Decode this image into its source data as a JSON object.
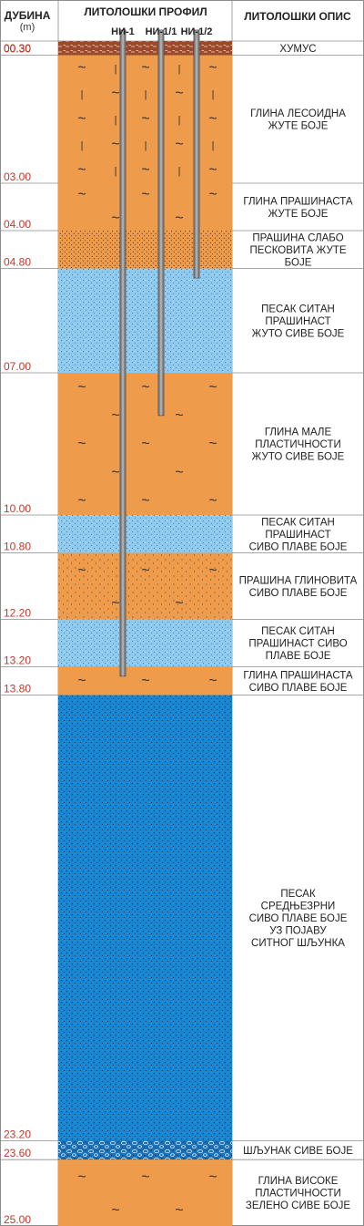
{
  "header": {
    "depth_title": "ДУБИНА",
    "depth_unit": "(m)",
    "profile_title": "ЛИТОЛОШКИ ПРОФИЛ",
    "description_title": "ЛИТОЛОШКИ ОПИС"
  },
  "wells": [
    {
      "name": "НИ-1",
      "bottom_depth": 13.4
    },
    {
      "name": "НИ-1/1",
      "bottom_depth": 7.9
    },
    {
      "name": "НИ-1/2",
      "bottom_depth": 5.0
    }
  ],
  "top_depth": "00.30",
  "layers": [
    {
      "bottom": "00.30",
      "description": [
        "ХУМУС"
      ],
      "pattern": "humus"
    },
    {
      "bottom": "03.00",
      "description": [
        "ГЛИНА ЛЕСОИДНА",
        "ЖУТЕ БОЈЕ"
      ],
      "pattern": "loess-clay"
    },
    {
      "bottom": "04.00",
      "description": [
        "ГЛИНА ПРАШИНАСТА",
        "ЖУТЕ БОЈЕ"
      ],
      "pattern": "clay"
    },
    {
      "bottom": "04.80",
      "description": [
        "ПРАШИНА СЛАБО",
        "ПЕСКОВИТА ЖУТЕ",
        "БОЈЕ"
      ],
      "pattern": "silt"
    },
    {
      "bottom": "07.00",
      "description": [
        "ПЕСАК СИТАН",
        "ПРАШИНАСТ",
        "ЖУТО СИВЕ БОЈЕ"
      ],
      "pattern": "fine-sand"
    },
    {
      "bottom": "10.00",
      "description": [
        "ГЛИНА МАЛЕ",
        "ПЛАСТИЧНОСТИ",
        "ЖУТО СИВЕ БОЈЕ"
      ],
      "pattern": "clay"
    },
    {
      "bottom": "10.80",
      "description": [
        "ПЕСАК СИТАН",
        "ПРАШИНАСТ",
        "СИВО ПЛАВЕ БОЈЕ"
      ],
      "pattern": "fine-sand"
    },
    {
      "bottom": "12.20",
      "description": [
        "ПРАШИНА ГЛИНОВИТА",
        "СИВО ПЛАВЕ БОЈЕ"
      ],
      "pattern": "clayey-silt"
    },
    {
      "bottom": "13.20",
      "description": [
        "ПЕСАК СИТАН",
        "ПРАШИНАСТ СИВО",
        "ПЛАВЕ БОЈЕ"
      ],
      "pattern": "fine-sand"
    },
    {
      "bottom": "13.80",
      "description": [
        "ГЛИНА ПРАШИНАСТА",
        "СИВО ПЛАВЕ БОЈЕ"
      ],
      "pattern": "clay"
    },
    {
      "bottom": "23.20",
      "description": [
        "ПЕСАК",
        "СРЕДЊЕЗРНИ",
        "СИВО ПЛАВЕ БОЈЕ",
        "УЗ ПОЈАВУ",
        "СИТНОГ ШЉУНКА"
      ],
      "pattern": "medium-sand"
    },
    {
      "bottom": "23.60",
      "description": [
        "ШЉУНАК СИВЕ БОЈЕ"
      ],
      "pattern": "gravel"
    },
    {
      "bottom": "25.00",
      "description": [
        "ГЛИНА ВИСОКЕ",
        "ПЛАСТИЧНОСТИ",
        "ЗЕЛЕНО СИВЕ БОЈЕ"
      ],
      "pattern": "clay"
    }
  ],
  "colors": {
    "humus": "#9c4a2c",
    "clay": "#ee9b4b",
    "fine_sand": "#8fcaee",
    "medium_sand": "#1787d4",
    "gravel": "#1a6fb5",
    "depth_text": "#c0392b",
    "pipe": "#8a8a8a"
  }
}
